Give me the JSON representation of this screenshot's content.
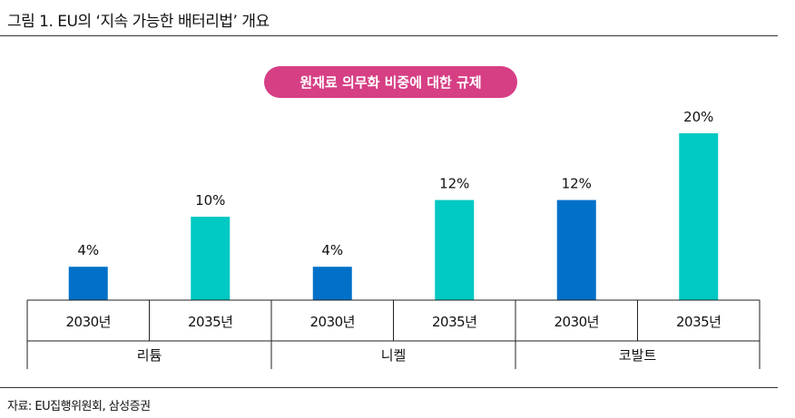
{
  "title": "그림 1. EU의 ‘지속 가능한 배터리법’ 개요",
  "source": "자료: EU집행위원회, 삼성증권",
  "chart_data": {
    "type": "bar",
    "title": "원재료 의무화 비중에 대한 규제",
    "groups": [
      "리튬",
      "니켈",
      "코발트"
    ],
    "categories": [
      "2030년",
      "2035년",
      "2030년",
      "2035년",
      "2030년",
      "2035년"
    ],
    "values": [
      4,
      10,
      4,
      12,
      12,
      20
    ],
    "labels": [
      "4%",
      "10%",
      "4%",
      "12%",
      "12%",
      "20%"
    ],
    "ylim": [
      0,
      20
    ],
    "colors": {
      "2030년": "#0070c8",
      "2035년": "#00c8c2",
      "pill": "#d63f84"
    }
  }
}
